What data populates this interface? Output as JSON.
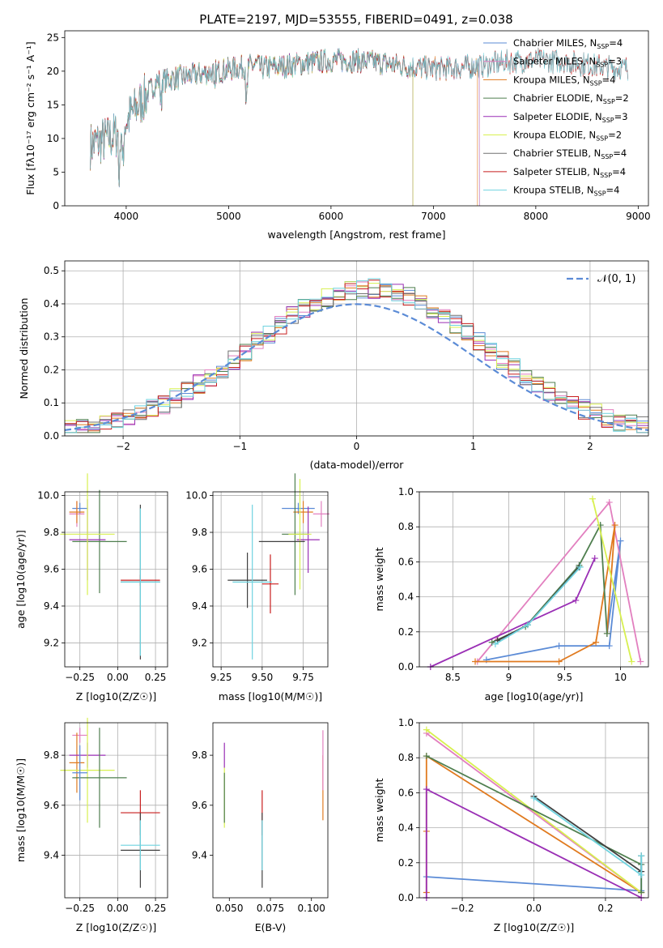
{
  "figure": {
    "title": "PLATE=2197, MJD=53555, FIBERID=0491, z=0.038",
    "colors": {
      "chabrier_miles": "#5b8bd6",
      "salpeter_miles": "#e27fbf",
      "kroupa_miles": "#e07a1f",
      "chabrier_elodie": "#4f7f4f",
      "salpeter_elodie": "#9a2fb5",
      "kroupa_elodie": "#d8f050",
      "chabrier_stelib": "#404040",
      "salpeter_stelib": "#c81e1e",
      "kroupa_stelib": "#6fd3df"
    }
  },
  "chart_data": [
    {
      "id": "spectrum",
      "type": "line",
      "xlabel": "wavelength [Angstrom, rest frame]",
      "ylabel": "Flux [f",
      "ylabel_full": "Flux [fλ10⁻¹⁷ erg cm⁻² s⁻¹ A⁻¹]",
      "xlim": [
        3400,
        9100
      ],
      "ylim": [
        0,
        26
      ],
      "xticks": [
        4000,
        5000,
        6000,
        7000,
        8000,
        9000
      ],
      "yticks": [
        0,
        5,
        10,
        15,
        20,
        25
      ],
      "grid": false,
      "legend_position": "top-right",
      "data_range_x": [
        3650,
        8900
      ],
      "series": [
        {
          "name": "Chabrier MILES, N_SSP=4",
          "label_main": "Chabrier MILES, N",
          "label_sub": "SSP",
          "label_tail": "=4",
          "color": "#5b8bd6",
          "end": 7450
        },
        {
          "name": "Salpeter MILES, N_SSP=3",
          "label_main": "Salpeter MILES, N",
          "label_sub": "SSP",
          "label_tail": "=3",
          "color": "#e27fbf",
          "end": 7450
        },
        {
          "name": "Kroupa MILES, N_SSP=4",
          "label_main": "Kroupa MILES, N",
          "label_sub": "SSP",
          "label_tail": "=4",
          "color": "#e07a1f",
          "end": 7430
        },
        {
          "name": "Chabrier ELODIE, N_SSP=2",
          "label_main": "Chabrier ELODIE, N",
          "label_sub": "SSP",
          "label_tail": "=2",
          "color": "#4f7f4f",
          "end": 6800
        },
        {
          "name": "Salpeter ELODIE, N_SSP=3",
          "label_main": "Salpeter ELODIE, N",
          "label_sub": "SSP",
          "label_tail": "=3",
          "color": "#9a2fb5",
          "end": 6800
        },
        {
          "name": "Kroupa ELODIE, N_SSP=2",
          "label_main": "Kroupa ELODIE, N",
          "label_sub": "SSP",
          "label_tail": "=2",
          "color": "#d8f050",
          "end": 6800
        },
        {
          "name": "Chabrier STELIB, N_SSP=4",
          "label_main": "Chabrier STELIB, N",
          "label_sub": "SSP",
          "label_tail": "=4",
          "color": "#707070",
          "end": 8900
        },
        {
          "name": "Salpeter STELIB, N_SSP=4",
          "label_main": "Salpeter STELIB, N",
          "label_sub": "SSP",
          "label_tail": "=4",
          "color": "#c81e1e",
          "end": 8900
        },
        {
          "name": "Kroupa STELIB, N_SSP=4",
          "label_main": "Kroupa STELIB, N",
          "label_sub": "SSP",
          "label_tail": "=4",
          "color": "#6fd3df",
          "end": 8900
        }
      ]
    },
    {
      "id": "residuals",
      "type": "step",
      "xlabel": "(data-model)/error",
      "ylabel": "Normed distribution",
      "xlim": [
        -2.5,
        2.5
      ],
      "ylim": [
        0,
        0.53
      ],
      "xticks": [
        -2,
        -1,
        0,
        1,
        2
      ],
      "yticks": [
        0.0,
        0.1,
        0.2,
        0.3,
        0.4,
        0.5
      ],
      "grid": true,
      "legend_position": "top-right",
      "reference_curve": {
        "name": "N(0,1)",
        "label": "𝒩(0, 1)",
        "color": "#5b8bd6",
        "style": "dashed"
      },
      "bin_width": 0.1
    },
    {
      "id": "age_vs_Z",
      "type": "errorbar",
      "xlabel": "Z [log10(Z/Z☉)]",
      "ylabel": "age  [log10(age/yr)]",
      "xlim": [
        -0.35,
        0.33
      ],
      "ylim": [
        9.07,
        10.02
      ],
      "xticks": [
        -0.25,
        0.0,
        0.25
      ],
      "xticklabels": [
        "−0.25",
        "0.00",
        "0.25"
      ],
      "yticks": [
        9.2,
        9.4,
        9.6,
        9.8,
        10.0
      ],
      "grid": true,
      "points": [
        {
          "color": "#5b8bd6",
          "x": -0.25,
          "xerr": 0.05,
          "y": 9.93,
          "yerr": 0.03
        },
        {
          "color": "#e27fbf",
          "x": -0.27,
          "xerr": 0.05,
          "y": 9.9,
          "yerr": 0.07
        },
        {
          "color": "#e07a1f",
          "x": -0.27,
          "xerr": 0.05,
          "y": 9.91,
          "yerr": 0.06
        },
        {
          "color": "#4f7f4f",
          "x": -0.12,
          "xerr": 0.18,
          "y": 9.75,
          "yerr": 0.28
        },
        {
          "color": "#9a2fb5",
          "x": -0.2,
          "xerr": 0.12,
          "y": 9.76,
          "yerr": 0.22
        },
        {
          "color": "#d8f050",
          "x": -0.2,
          "xerr": 0.18,
          "y": 9.79,
          "yerr": 0.33
        },
        {
          "color": "#404040",
          "x": 0.15,
          "xerr": 0.13,
          "y": 9.53,
          "yerr": 0.42
        },
        {
          "color": "#c81e1e",
          "x": 0.15,
          "xerr": 0.13,
          "y": 9.54,
          "yerr": 0.03
        },
        {
          "color": "#6fd3df",
          "x": 0.15,
          "xerr": 0.13,
          "y": 9.53,
          "yerr": 0.4
        }
      ]
    },
    {
      "id": "age_vs_mass",
      "type": "errorbar",
      "xlabel": "mass [log10(M/M☉)]",
      "ylabel": "",
      "xlim": [
        9.2,
        9.9
      ],
      "ylim": [
        9.07,
        10.02
      ],
      "xticks": [
        9.25,
        9.5,
        9.75
      ],
      "xticklabels": [
        "9.25",
        "9.50",
        "9.75"
      ],
      "yticks": [
        9.2,
        9.4,
        9.6,
        9.8,
        10.0
      ],
      "grid": true,
      "points": [
        {
          "color": "#5b8bd6",
          "x": 9.72,
          "xerr": 0.1,
          "y": 9.93,
          "yerr": 0.03
        },
        {
          "color": "#e27fbf",
          "x": 9.86,
          "xerr": 0.05,
          "y": 9.9,
          "yerr": 0.07
        },
        {
          "color": "#e07a1f",
          "x": 9.75,
          "xerr": 0.06,
          "y": 9.91,
          "yerr": 0.06
        },
        {
          "color": "#4f7f4f",
          "x": 9.7,
          "xerr": 0.08,
          "y": 9.79,
          "yerr": 0.33
        },
        {
          "color": "#9a2fb5",
          "x": 9.78,
          "xerr": 0.07,
          "y": 9.76,
          "yerr": 0.18
        },
        {
          "color": "#d8f050",
          "x": 9.73,
          "xerr": 0.07,
          "y": 9.79,
          "yerr": 0.3
        },
        {
          "color": "#404040",
          "x": 9.41,
          "xerr": 0.12,
          "y": 9.54,
          "yerr": 0.15
        },
        {
          "color": "#c81e1e",
          "x": 9.55,
          "xerr": 0.05,
          "y": 9.52,
          "yerr": 0.16
        },
        {
          "color": "#6fd3df",
          "x": 9.44,
          "xerr": 0.12,
          "y": 9.53,
          "yerr": 0.42
        },
        {
          "color": "#404040",
          "x": 9.62,
          "xerr": 0.14,
          "y": 9.75,
          "yerr": 0.0
        }
      ]
    },
    {
      "id": "cum_mass_vs_age",
      "type": "line",
      "xlabel": "age  [log10(age/yr)]",
      "ylabel": "mass weight",
      "xlim": [
        8.2,
        10.25
      ],
      "ylim": [
        0.0,
        1.0
      ],
      "xticks": [
        8.5,
        9.0,
        9.5,
        10.0
      ],
      "yticks": [
        0.0,
        0.2,
        0.4,
        0.6,
        0.8,
        1.0
      ],
      "grid": true,
      "series": [
        {
          "color": "#5b8bd6",
          "x": [
            8.8,
            9.45,
            9.9,
            10.0,
            9.88
          ],
          "y": [
            0.04,
            0.12,
            0.12,
            0.72,
            0.19
          ]
        },
        {
          "color": "#e27fbf",
          "x": [
            8.72,
            9.9,
            10.18
          ],
          "y": [
            0.03,
            0.94,
            0.03
          ]
        },
        {
          "color": "#e07a1f",
          "x": [
            8.7,
            9.45,
            9.78,
            9.95,
            9.88
          ],
          "y": [
            0.03,
            0.03,
            0.14,
            0.81,
            0.19
          ]
        },
        {
          "color": "#4f7f4f",
          "x": [
            8.85,
            9.15,
            9.63,
            9.82,
            9.88
          ],
          "y": [
            0.14,
            0.23,
            0.58,
            0.81,
            0.19
          ]
        },
        {
          "color": "#9a2fb5",
          "x": [
            8.3,
            9.6,
            9.77
          ],
          "y": [
            0.0,
            0.38,
            0.62
          ]
        },
        {
          "color": "#d8f050",
          "x": [
            9.75,
            10.1
          ],
          "y": [
            0.96,
            0.03
          ]
        },
        {
          "color": "#404040",
          "x": [
            8.9,
            9.17,
            9.63
          ],
          "y": [
            0.15,
            0.24,
            0.57
          ]
        },
        {
          "color": "#6fd3df",
          "x": [
            8.88,
            9.17,
            9.64
          ],
          "y": [
            0.13,
            0.24,
            0.57
          ]
        }
      ]
    },
    {
      "id": "mass_vs_Z",
      "type": "errorbar",
      "xlabel": "Z [log10(Z/Z☉)]",
      "ylabel": "mass [log10(M/M☉)]",
      "xlim": [
        -0.35,
        0.33
      ],
      "ylim": [
        9.23,
        9.93
      ],
      "xticks": [
        -0.25,
        0.0,
        0.25
      ],
      "xticklabels": [
        "−0.25",
        "0.00",
        "0.25"
      ],
      "yticks": [
        9.4,
        9.6,
        9.8
      ],
      "grid": true,
      "points": [
        {
          "color": "#e27fbf",
          "x": -0.25,
          "xerr": 0.05,
          "y": 9.88,
          "yerr": 0.03
        },
        {
          "color": "#e07a1f",
          "x": -0.27,
          "xerr": 0.05,
          "y": 9.77,
          "yerr": 0.12
        },
        {
          "color": "#9a2fb5",
          "x": -0.2,
          "xerr": 0.12,
          "y": 9.8,
          "yerr": 0.05
        },
        {
          "color": "#d8f050",
          "x": -0.2,
          "xerr": 0.18,
          "y": 9.74,
          "yerr": 0.21
        },
        {
          "color": "#4f7f4f",
          "x": -0.12,
          "xerr": 0.18,
          "y": 9.71,
          "yerr": 0.2
        },
        {
          "color": "#5b8bd6",
          "x": -0.25,
          "xerr": 0.05,
          "y": 9.73,
          "yerr": 0.11
        },
        {
          "color": "#c81e1e",
          "x": 0.15,
          "xerr": 0.13,
          "y": 9.57,
          "yerr": 0.09
        },
        {
          "color": "#404040",
          "x": 0.15,
          "xerr": 0.13,
          "y": 9.42,
          "yerr": 0.15
        },
        {
          "color": "#6fd3df",
          "x": 0.15,
          "xerr": 0.13,
          "y": 9.44,
          "yerr": 0.1
        }
      ]
    },
    {
      "id": "mass_vs_ebv",
      "type": "errorbar",
      "xlabel": "E(B-V)",
      "ylabel": "",
      "xlim": [
        0.04,
        0.11
      ],
      "ylim": [
        9.23,
        9.93
      ],
      "xticks": [
        0.05,
        0.075,
        0.1
      ],
      "xticklabels": [
        "0.050",
        "0.075",
        "0.100"
      ],
      "yticks": [
        9.4,
        9.6,
        9.8
      ],
      "grid": false,
      "points": [
        {
          "color": "#9a2fb5",
          "x": 0.047,
          "xerr": 0.0,
          "y": 9.8,
          "yerr": 0.05
        },
        {
          "color": "#d8f050",
          "x": 0.047,
          "xerr": 0.0,
          "y": 9.63,
          "yerr": 0.12
        },
        {
          "color": "#4f7f4f",
          "x": 0.047,
          "xerr": 0.0,
          "y": 9.63,
          "yerr": 0.1
        },
        {
          "color": "#c81e1e",
          "x": 0.07,
          "xerr": 0.0,
          "y": 9.57,
          "yerr": 0.09
        },
        {
          "color": "#404040",
          "x": 0.07,
          "xerr": 0.0,
          "y": 9.42,
          "yerr": 0.15
        },
        {
          "color": "#6fd3df",
          "x": 0.07,
          "xerr": 0.0,
          "y": 9.44,
          "yerr": 0.1
        },
        {
          "color": "#e07a1f",
          "x": 0.107,
          "xerr": 0.0,
          "y": 9.67,
          "yerr": 0.13
        },
        {
          "color": "#e27fbf",
          "x": 0.107,
          "xerr": 0.0,
          "y": 9.78,
          "yerr": 0.12
        }
      ]
    },
    {
      "id": "cum_mass_vs_Z",
      "type": "line",
      "xlabel": "Z [log10(Z/Z☉)]",
      "ylabel": "mass weight",
      "xlim": [
        -0.32,
        0.32
      ],
      "ylim": [
        0.0,
        1.0
      ],
      "xticks": [
        -0.2,
        0.0,
        0.2
      ],
      "xticklabels": [
        "−0.2",
        "0.0",
        "0.2"
      ],
      "yticks": [
        0.0,
        0.2,
        0.4,
        0.6,
        0.8,
        1.0
      ],
      "grid": true,
      "series": [
        {
          "color": "#5b8bd6",
          "x": [
            -0.3,
            0.3,
            0.3
          ],
          "y": [
            0.12,
            0.04,
            0.19
          ]
        },
        {
          "color": "#e07a1f",
          "x": [
            -0.3,
            -0.3,
            -0.3,
            0.3
          ],
          "y": [
            0.03,
            0.38,
            0.81,
            0.03
          ]
        },
        {
          "color": "#e27fbf",
          "x": [
            -0.3,
            0.3
          ],
          "y": [
            0.94,
            0.03
          ]
        },
        {
          "color": "#d8f050",
          "x": [
            -0.3,
            0.3
          ],
          "y": [
            0.96,
            0.03
          ]
        },
        {
          "color": "#4f7f4f",
          "x": [
            -0.3,
            0.3,
            0.3
          ],
          "y": [
            0.81,
            0.19,
            0.03
          ]
        },
        {
          "color": "#9a2fb5",
          "x": [
            -0.3,
            -0.3,
            0.3
          ],
          "y": [
            0.0,
            0.62,
            0.0
          ]
        },
        {
          "color": "#404040",
          "x": [
            0.0,
            0.3,
            0.3
          ],
          "y": [
            0.58,
            0.15,
            0.24
          ]
        },
        {
          "color": "#6fd3df",
          "x": [
            0.0,
            0.3,
            0.3
          ],
          "y": [
            0.57,
            0.13,
            0.24
          ]
        }
      ]
    }
  ]
}
